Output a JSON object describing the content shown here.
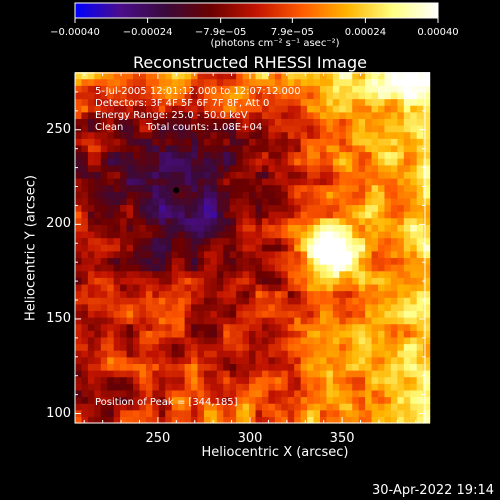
{
  "colorbar": {
    "ticks": [
      "−0.00040",
      "−0.00024",
      "−7.9e−05",
      "7.9e−05",
      "0.00024",
      "0.00040"
    ],
    "tick_values": [
      -0.0004,
      -0.00024,
      -7.9e-05,
      7.9e-05,
      0.00024,
      0.0004
    ],
    "range": [
      -0.0004,
      0.0004
    ],
    "units": "(photons cm⁻² s⁻¹ asec⁻²)",
    "colormap": [
      "#0000ff",
      "#4b0d8c",
      "#3a0a3a",
      "#6b0000",
      "#c21400",
      "#ff5a00",
      "#ffb400",
      "#ffff80",
      "#ffffff"
    ]
  },
  "chart_data": {
    "type": "heatmap",
    "title": "Reconstructed RHESSI Image",
    "xlabel": "Heliocentric X (arcsec)",
    "ylabel": "Heliocentric Y (arcsec)",
    "xlim": [
      205,
      395
    ],
    "ylim": [
      95,
      280
    ],
    "xticks": [
      250,
      300,
      350
    ],
    "yticks": [
      100,
      150,
      200,
      250
    ],
    "annotations": {
      "time": "5-Jul-2005 12:01:12.000 to 12:07:12.000",
      "detectors": "Detectors: 3F 4F 5F 6F 7F 8F, Att 0",
      "energy": "Energy Range: 25.0 - 50.0 keV",
      "method": "Clean",
      "counts": "Total counts: 1.08E+04",
      "peak": "Position of Peak = [344,185]"
    },
    "peak_position": [
      344,
      185
    ],
    "min_position": [
      260,
      218
    ],
    "grid": false
  },
  "footer": {
    "timestamp": "30-Apr-2022 19:14"
  }
}
